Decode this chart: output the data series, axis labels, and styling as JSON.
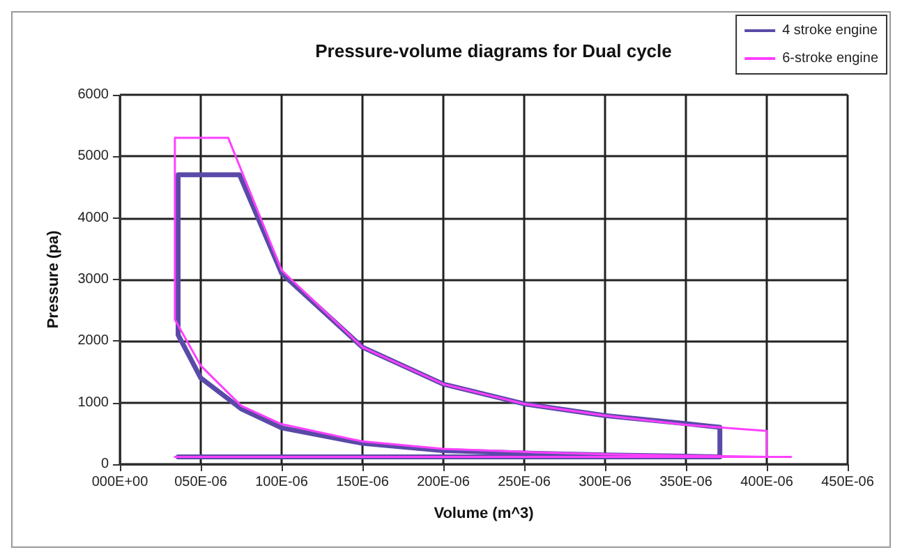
{
  "chart_data": {
    "type": "line",
    "title": "Pressure-volume diagrams for Dual cycle",
    "xlabel": "Volume (m^3)",
    "ylabel": "Pressure (pa)",
    "series": [
      {
        "name": "4 stroke engine",
        "color": "#5a4aa8",
        "x": [
          3.6e-05,
          0.000371,
          0.000371,
          0.00035,
          0.0003,
          0.00025,
          0.0002,
          0.00015,
          0.0001,
          7.5e-05,
          5e-05,
          3.6e-05,
          3.6e-05,
          7.4e-05,
          0.0001,
          0.00015,
          0.0002,
          0.00025,
          0.0003,
          0.00035,
          0.000371,
          0.000371
        ],
        "values": [
          120,
          120,
          120,
          130,
          150,
          180,
          220,
          340,
          590,
          900,
          1400,
          2100,
          4700,
          4700,
          3100,
          1900,
          1300,
          980,
          790,
          660,
          600,
          120
        ]
      },
      {
        "name": "6-stroke engine",
        "color": "#ff40ff",
        "x": [
          3.4e-05,
          0.000415,
          0.0004,
          0.00035,
          0.0003,
          0.00025,
          0.0002,
          0.00015,
          0.0001,
          7.5e-05,
          5e-05,
          3.4e-05,
          3.4e-05,
          6.7e-05,
          0.0001,
          0.00015,
          0.0002,
          0.00025,
          0.0003,
          0.00035,
          0.0004,
          0.0004
        ],
        "values": [
          120,
          120,
          120,
          140,
          160,
          200,
          250,
          370,
          650,
          950,
          1600,
          2350,
          5300,
          5300,
          3150,
          1900,
          1300,
          980,
          790,
          640,
          540,
          120
        ]
      }
    ],
    "xlim": [
      0,
      0.00045
    ],
    "xticks": [
      {
        "value": 0,
        "label": "000E+00"
      },
      {
        "value": 5e-05,
        "label": "050E-06"
      },
      {
        "value": 0.0001,
        "label": "100E-06"
      },
      {
        "value": 0.00015,
        "label": "150E-06"
      },
      {
        "value": 0.0002,
        "label": "200E-06"
      },
      {
        "value": 0.00025,
        "label": "250E-06"
      },
      {
        "value": 0.0003,
        "label": "300E-06"
      },
      {
        "value": 0.00035,
        "label": "350E-06"
      },
      {
        "value": 0.0004,
        "label": "400E-06"
      },
      {
        "value": 0.00045,
        "label": "450E-06"
      }
    ],
    "ylim": [
      0,
      6000
    ],
    "yticks": [
      0,
      1000,
      2000,
      3000,
      4000,
      5000,
      6000
    ],
    "grid": true,
    "legend": "top right",
    "marker": "none",
    "line_style": "solid"
  }
}
